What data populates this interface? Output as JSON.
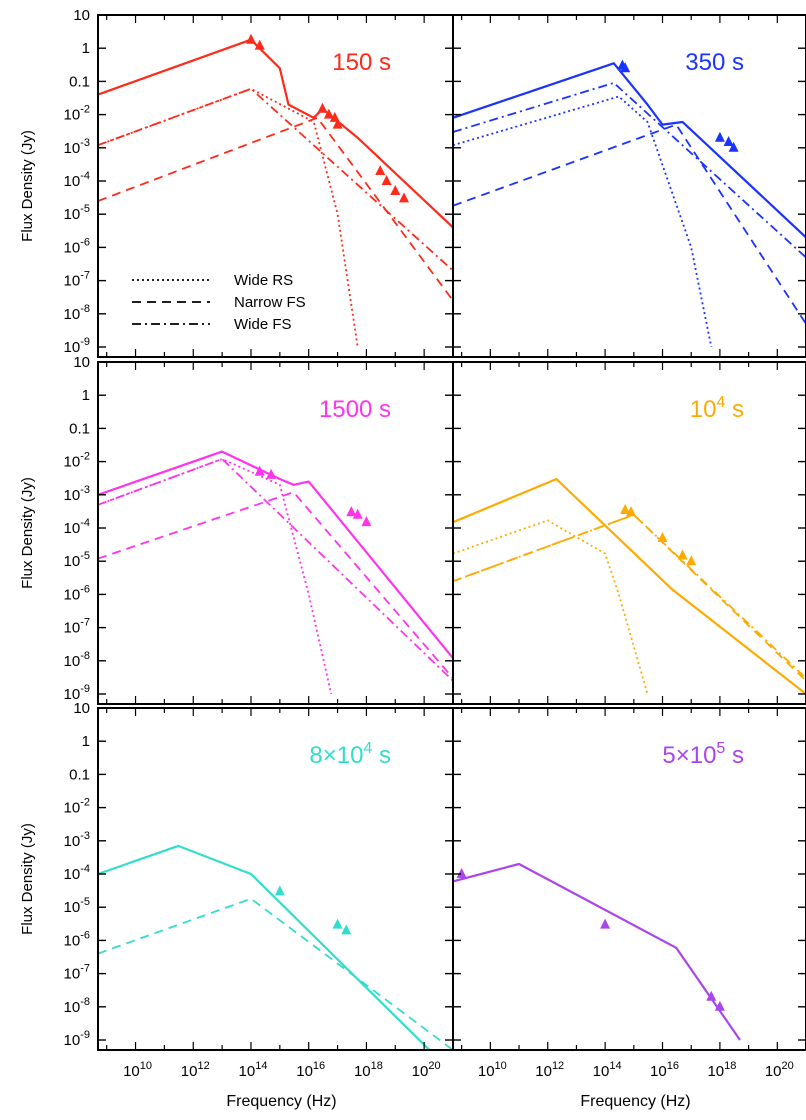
{
  "chart_data": {
    "type": "line",
    "x_scale": "log",
    "y_scale": "log",
    "xlim": [
      500000000,
      1e+21
    ],
    "ylim": [
      5e-10,
      10
    ],
    "xlabel": "Frequency (Hz)",
    "ylabel": "Flux Density (Jy)",
    "ytick_labels": [
      "10",
      "1",
      "0.1",
      "10-2",
      "10-3",
      "10-4",
      "10-5",
      "10-6",
      "10-7",
      "10-8",
      "10-9"
    ],
    "xtick_labels": [
      "1010",
      "1012",
      "1014",
      "1016",
      "1018",
      "1020"
    ],
    "legend": {
      "position": "lower-left of first panel",
      "entries": [
        {
          "label": "Wide RS",
          "style": "dotted"
        },
        {
          "label": "Narrow FS",
          "style": "dashed"
        },
        {
          "label": "Wide FS",
          "style": "dash-dot"
        }
      ]
    },
    "panels": [
      {
        "label_main": "150 s",
        "label_base": "",
        "label_exp": "",
        "label_tail": "",
        "color": "#ff2a1a",
        "series": {
          "total": {
            "x": [
              500000000,
              100000000000000.0,
              1000000000000000.0,
              2000000000000000.0,
              1.5e+16,
              3e+16,
              5e+17,
              1e+21
            ],
            "y": [
              0.04,
              1.8,
              0.25,
              0.02,
              0.008,
              0.015,
              0.002,
              4e-06
            ]
          },
          "wide_rs": {
            "x": [
              500000000,
              100000000000000.0,
              1.5e+16,
              1e+17,
              5e+17
            ],
            "y": [
              0.0012,
              0.06,
              0.006,
              1e-05,
              1e-09
            ]
          },
          "narrow_fs": {
            "x": [
              500000000,
              2e+16,
              1e+21
            ],
            "y": [
              2.5e-05,
              0.008,
              2.5e-08
            ]
          },
          "wide_fs": {
            "x": [
              500000000,
              100000000000000.0,
              1e+21
            ],
            "y": [
              0.0012,
              0.06,
              2e-07
            ]
          }
        },
        "data_points": [
          {
            "x": 100000000000000,
            "y": 1.8
          },
          {
            "x": 200000000000000,
            "y": 1.2
          },
          {
            "x": 30000000000000000,
            "y": 0.015
          },
          {
            "x": 50000000000000000,
            "y": 0.01
          },
          {
            "x": 80000000000000000,
            "y": 0.008
          },
          {
            "x": 100000000000000000,
            "y": 0.005
          },
          {
            "x": 3e+18,
            "y": 0.0002
          },
          {
            "x": 5e+18,
            "y": 0.0001
          },
          {
            "x": 1e+19,
            "y": 5e-05
          },
          {
            "x": 2e+19,
            "y": 3e-05
          }
        ]
      },
      {
        "label_main": "350 s",
        "label_base": "",
        "label_exp": "",
        "label_tail": "",
        "color": "#1a33ff",
        "series": {
          "total": {
            "x": [
              500000000,
              200000000000000.0,
              3000000000000000.0,
              1e+16,
              5e+16,
              1e+21
            ],
            "y": [
              0.008,
              0.35,
              0.02,
              0.005,
              0.006,
              2e-06
            ]
          },
          "wide_rs": {
            "x": [
              500000000,
              300000000000000.0,
              3000000000000000.0,
              1e+17,
              5e+17
            ],
            "y": [
              0.0012,
              0.035,
              0.006,
              1e-06,
              1e-09
            ]
          },
          "narrow_fs": {
            "x": [
              500000000,
              3e+16,
              1e+21
            ],
            "y": [
              1.8e-05,
              0.005,
              5e-09
            ]
          },
          "wide_fs": {
            "x": [
              500000000,
              200000000000000.0,
              1e+21
            ],
            "y": [
              0.003,
              0.09,
              5e-07
            ]
          }
        },
        "data_points": [
          {
            "x": 400000000000000,
            "y": 0.3
          },
          {
            "x": 500000000000000,
            "y": 0.25
          },
          {
            "x": 1e+18,
            "y": 0.002
          },
          {
            "x": 2e+18,
            "y": 0.0015
          },
          {
            "x": 3e+18,
            "y": 0.001
          }
        ]
      },
      {
        "label_main": "1500 s",
        "label_base": "",
        "label_exp": "",
        "label_tail": "",
        "color": "#ff33ee",
        "series": {
          "total": {
            "x": [
              500000000,
              10000000000000.0,
              1000000000000000.0,
              3000000000000000.0,
              1e+16,
              1e+21
            ],
            "y": [
              0.001,
              0.02,
              0.003,
              0.002,
              0.0025,
              1.2e-08
            ]
          },
          "wide_rs": {
            "x": [
              500000000,
              10000000000000.0,
              1000000000000000.0,
              1e+16,
              6e+16
            ],
            "y": [
              0.0005,
              0.012,
              0.002,
              1e-06,
              1e-09
            ]
          },
          "narrow_fs": {
            "x": [
              500000000,
              3000000000000000.0,
              1e+21
            ],
            "y": [
              1.2e-05,
              0.0012,
              3e-09
            ]
          },
          "wide_fs": {
            "x": [
              500000000,
              10000000000000.0,
              1e+21
            ],
            "y": [
              0.0005,
              0.012,
              2.5e-09
            ]
          }
        },
        "data_points": [
          {
            "x": 200000000000000,
            "y": 0.005
          },
          {
            "x": 500000000000000,
            "y": 0.004
          },
          {
            "x": 300000000000000000,
            "y": 0.0003
          },
          {
            "x": 500000000000000000,
            "y": 0.00025
          },
          {
            "x": 1e+18,
            "y": 0.00015
          }
        ]
      },
      {
        "label_main": "",
        "label_base": "10",
        "label_exp": "4",
        "label_tail": " s",
        "color": "#ffaa00",
        "series": {
          "total": {
            "x": [
              500000000,
              2000000000000.0,
              2e+16,
              1e+21
            ],
            "y": [
              0.00015,
              0.003,
              1.5e-06,
              1e-09
            ]
          },
          "wide_rs": {
            "x": [
              500000000,
              1000000000000.0,
              100000000000000.0,
              300000000000000.0,
              3000000000000000.0
            ],
            "y": [
              1.7e-05,
              0.00017,
              1.7e-05,
              1e-06,
              1e-09
            ]
          },
          "narrow_fs": {
            "x": [
              500000000,
              1000000000000000.0,
              1e+21
            ],
            "y": [
              2.5e-06,
              0.00025,
              2.5e-09
            ]
          },
          "wide_fs": {
            "x": [
              500000000,
              1000000000000000.0,
              1e+21
            ],
            "y": [
              2.5e-06,
              0.00025,
              3e-09
            ]
          }
        },
        "data_points": [
          {
            "x": 500000000000000,
            "y": 0.00035
          },
          {
            "x": 800000000000000,
            "y": 0.0003
          },
          {
            "x": 10000000000000000,
            "y": 5e-05
          },
          {
            "x": 50000000000000000,
            "y": 1.5e-05
          },
          {
            "x": 100000000000000000,
            "y": 1e-05
          }
        ]
      },
      {
        "label_main": "",
        "label_base": "8×10",
        "label_exp": "4",
        "label_tail": " s",
        "color": "#33ddcc",
        "series": {
          "total": {
            "x": [
              500000000,
              300000000000.0,
              100000000000000.0,
              1e+21
            ],
            "y": [
              0.0001,
              0.0007,
              0.0001,
              1e-10
            ]
          },
          "narrow_fs": {
            "x": [
              500000000,
              100000000000000.0,
              1e+21
            ],
            "y": [
              4e-07,
              1.8e-05,
              5e-10
            ]
          }
        },
        "data_points": [
          {
            "x": 1000000000000000,
            "y": 3e-05
          },
          {
            "x": 1e+17,
            "y": 3e-06
          },
          {
            "x": 2e+17,
            "y": 2e-06
          }
        ]
      },
      {
        "label_main": "",
        "label_base": "5×10",
        "label_exp": "5",
        "label_tail": " s",
        "color": "#aa44ee",
        "series": {
          "total": {
            "x": [
              500000000,
              100000000000.0,
              3e+16,
              5e+18
            ],
            "y": [
              6e-05,
              0.0002,
              6e-07,
              1e-09
            ]
          }
        },
        "data_points": [
          {
            "x": 1000000000,
            "y": 0.0001
          },
          {
            "x": 100000000000000,
            "y": 3e-06
          },
          {
            "x": 5e+17,
            "y": 2e-08
          },
          {
            "x": 1e+18,
            "y": 1e-08
          }
        ]
      }
    ]
  }
}
